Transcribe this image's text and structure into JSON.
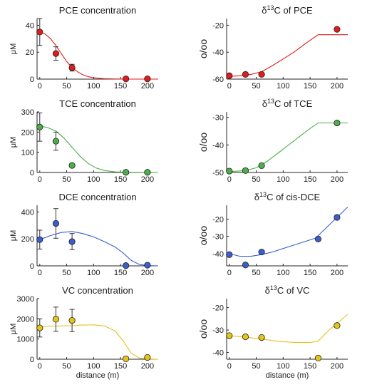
{
  "chart_data": [
    {
      "type": "scatter",
      "title": {
        "pre": "PCE concentration",
        "sup": "",
        "post": ""
      },
      "ylabel": "μM",
      "xlabel": "",
      "color": "#e41a1c",
      "xlim": [
        -5,
        220
      ],
      "ylim": [
        0,
        45
      ],
      "xticks": [
        0,
        50,
        100,
        150,
        200
      ],
      "yticks": [
        0,
        20,
        40
      ],
      "points": [
        {
          "x": 0,
          "y": 35,
          "err": 10
        },
        {
          "x": 30,
          "y": 19,
          "err": 5
        },
        {
          "x": 60,
          "y": 8.5,
          "err": 2.5
        },
        {
          "x": 160,
          "y": 0.2
        },
        {
          "x": 200,
          "y": 0.2
        }
      ],
      "curve": [
        [
          0,
          35
        ],
        [
          10,
          33.5
        ],
        [
          20,
          30
        ],
        [
          30,
          25
        ],
        [
          40,
          19
        ],
        [
          50,
          13
        ],
        [
          60,
          8.5
        ],
        [
          70,
          5.5
        ],
        [
          80,
          3.2
        ],
        [
          90,
          1.8
        ],
        [
          100,
          1
        ],
        [
          120,
          0.3
        ],
        [
          140,
          0.1
        ],
        [
          160,
          0
        ],
        [
          220,
          0
        ]
      ]
    },
    {
      "type": "scatter",
      "title": {
        "pre": "δ",
        "sup": "13",
        "post": "C of PCE"
      },
      "ylabel": "o/oo",
      "xlabel": "",
      "color": "#e41a1c",
      "xlim": [
        -5,
        220
      ],
      "ylim": [
        -60,
        -15
      ],
      "xticks": [
        0,
        50,
        100,
        150,
        200
      ],
      "yticks": [
        -60,
        -40,
        -20
      ],
      "points": [
        {
          "x": 0,
          "y": -57.5
        },
        {
          "x": 30,
          "y": -56.5
        },
        {
          "x": 60,
          "y": -56.5
        },
        {
          "x": 200,
          "y": -23
        }
      ],
      "curve": [
        [
          0,
          -58
        ],
        [
          20,
          -57.5
        ],
        [
          40,
          -56.5
        ],
        [
          60,
          -54.5
        ],
        [
          80,
          -50
        ],
        [
          100,
          -45
        ],
        [
          120,
          -40
        ],
        [
          140,
          -34
        ],
        [
          165,
          -27
        ],
        [
          220,
          -27
        ]
      ]
    },
    {
      "type": "scatter",
      "title": {
        "pre": "TCE concentration",
        "sup": "",
        "post": ""
      },
      "ylabel": "μM",
      "xlabel": "",
      "color": "#4daf4a",
      "xlim": [
        -5,
        220
      ],
      "ylim": [
        0,
        300
      ],
      "xticks": [
        0,
        50,
        100,
        150,
        200
      ],
      "yticks": [
        0,
        100,
        200,
        300
      ],
      "points": [
        {
          "x": 0,
          "y": 225,
          "err": 70
        },
        {
          "x": 30,
          "y": 155,
          "err": 45
        },
        {
          "x": 60,
          "y": 35,
          "err": 8
        },
        {
          "x": 160,
          "y": 1
        },
        {
          "x": 200,
          "y": 1
        }
      ],
      "curve": [
        [
          0,
          230
        ],
        [
          15,
          222
        ],
        [
          30,
          205
        ],
        [
          45,
          170
        ],
        [
          60,
          125
        ],
        [
          75,
          80
        ],
        [
          90,
          45
        ],
        [
          105,
          22
        ],
        [
          120,
          10
        ],
        [
          140,
          3
        ],
        [
          160,
          1
        ],
        [
          220,
          0
        ]
      ]
    },
    {
      "type": "scatter",
      "title": {
        "pre": "δ",
        "sup": "13",
        "post": "C of TCE"
      },
      "ylabel": "o/oo",
      "xlabel": "",
      "color": "#4daf4a",
      "xlim": [
        -5,
        220
      ],
      "ylim": [
        -50,
        -28
      ],
      "xticks": [
        0,
        50,
        100,
        150,
        200
      ],
      "yticks": [
        -50,
        -40,
        -30
      ],
      "points": [
        {
          "x": 0,
          "y": -49.5
        },
        {
          "x": 30,
          "y": -49.3
        },
        {
          "x": 60,
          "y": -47.5
        },
        {
          "x": 200,
          "y": -32
        }
      ],
      "curve": [
        [
          0,
          -49.7
        ],
        [
          30,
          -49.3
        ],
        [
          50,
          -48.3
        ],
        [
          70,
          -46
        ],
        [
          90,
          -43
        ],
        [
          110,
          -40
        ],
        [
          130,
          -37
        ],
        [
          150,
          -34
        ],
        [
          165,
          -32
        ],
        [
          220,
          -32
        ]
      ]
    },
    {
      "type": "scatter",
      "title": {
        "pre": "DCE concentration",
        "sup": "",
        "post": ""
      },
      "ylabel": "μM",
      "xlabel": "",
      "color": "#3a5fcd",
      "xlim": [
        -5,
        220
      ],
      "ylim": [
        0,
        450
      ],
      "xticks": [
        0,
        50,
        100,
        150,
        200
      ],
      "yticks": [
        0,
        200,
        400
      ],
      "points": [
        {
          "x": 0,
          "y": 195,
          "err": 70
        },
        {
          "x": 30,
          "y": 315,
          "err": 110
        },
        {
          "x": 60,
          "y": 180,
          "err": 60
        },
        {
          "x": 160,
          "y": 2
        },
        {
          "x": 200,
          "y": 5
        }
      ],
      "curve": [
        [
          0,
          195
        ],
        [
          20,
          225
        ],
        [
          40,
          248
        ],
        [
          60,
          255
        ],
        [
          80,
          240
        ],
        [
          100,
          215
        ],
        [
          120,
          180
        ],
        [
          140,
          140
        ],
        [
          155,
          95
        ],
        [
          170,
          40
        ],
        [
          185,
          10
        ],
        [
          200,
          2
        ],
        [
          220,
          0
        ]
      ]
    },
    {
      "type": "scatter",
      "title": {
        "pre": "δ",
        "sup": "13",
        "post": "C of cis-DCE"
      },
      "ylabel": "o/oo",
      "xlabel": "",
      "color": "#3a5fcd",
      "xlim": [
        -5,
        220
      ],
      "ylim": [
        -47,
        -12
      ],
      "xticks": [
        0,
        50,
        100,
        150,
        200
      ],
      "yticks": [
        -40,
        -30,
        -20
      ],
      "points": [
        {
          "x": 0,
          "y": -40.5
        },
        {
          "x": 30,
          "y": -46.5
        },
        {
          "x": 60,
          "y": -39
        },
        {
          "x": 165,
          "y": -31.5
        },
        {
          "x": 200,
          "y": -19
        }
      ],
      "curve": [
        [
          0,
          -40
        ],
        [
          20,
          -41.5
        ],
        [
          40,
          -41.5
        ],
        [
          60,
          -40.5
        ],
        [
          80,
          -39
        ],
        [
          100,
          -37
        ],
        [
          120,
          -35
        ],
        [
          140,
          -33
        ],
        [
          160,
          -31
        ],
        [
          180,
          -25
        ],
        [
          200,
          -19
        ],
        [
          220,
          -13
        ]
      ]
    },
    {
      "type": "scatter",
      "title": {
        "pre": "VC concentration",
        "sup": "",
        "post": ""
      },
      "ylabel": "μM",
      "xlabel": "distance (m)",
      "color": "#e6c21a",
      "xlim": [
        -5,
        220
      ],
      "ylim": [
        0,
        3000
      ],
      "xticks": [
        0,
        50,
        100,
        150,
        200
      ],
      "yticks": [
        0,
        1000,
        2000,
        3000
      ],
      "points": [
        {
          "x": 0,
          "y": 1550,
          "err": 450
        },
        {
          "x": 30,
          "y": 1980,
          "err": 600
        },
        {
          "x": 60,
          "y": 1920,
          "err": 550
        },
        {
          "x": 160,
          "y": 20
        },
        {
          "x": 200,
          "y": 90,
          "err": 60
        }
      ],
      "curve": [
        [
          0,
          1580
        ],
        [
          20,
          1640
        ],
        [
          40,
          1650
        ],
        [
          60,
          1660
        ],
        [
          80,
          1690
        ],
        [
          100,
          1700
        ],
        [
          120,
          1650
        ],
        [
          140,
          1400
        ],
        [
          155,
          900
        ],
        [
          170,
          300
        ],
        [
          185,
          60
        ],
        [
          200,
          10
        ],
        [
          220,
          0
        ]
      ]
    },
    {
      "type": "scatter",
      "title": {
        "pre": "δ",
        "sup": "13",
        "post": "C of VC"
      },
      "ylabel": "o/oo",
      "xlabel": "distance (m)",
      "color": "#e6c21a",
      "xlim": [
        -5,
        220
      ],
      "ylim": [
        -43,
        -16
      ],
      "xticks": [
        0,
        50,
        100,
        150,
        200
      ],
      "yticks": [
        -40,
        -30,
        -20
      ],
      "points": [
        {
          "x": 0,
          "y": -32.5
        },
        {
          "x": 30,
          "y": -33
        },
        {
          "x": 60,
          "y": -33.3
        },
        {
          "x": 165,
          "y": -42.5
        },
        {
          "x": 200,
          "y": -28
        }
      ],
      "curve": [
        [
          0,
          -32.5
        ],
        [
          30,
          -33.2
        ],
        [
          60,
          -34
        ],
        [
          90,
          -35
        ],
        [
          120,
          -35.5
        ],
        [
          150,
          -35.5
        ],
        [
          165,
          -35
        ],
        [
          185,
          -30
        ],
        [
          200,
          -27
        ],
        [
          220,
          -23
        ]
      ]
    }
  ]
}
